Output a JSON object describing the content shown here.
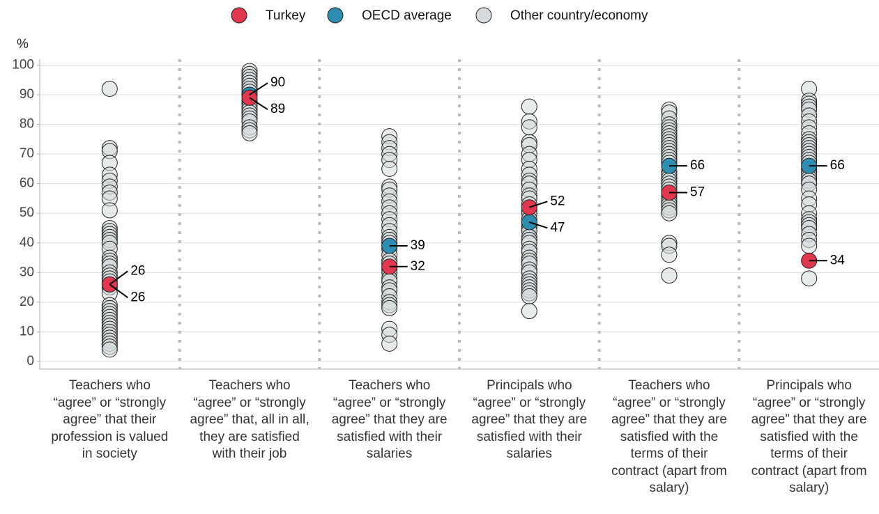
{
  "chart_data": {
    "type": "strip",
    "y_label": "%",
    "categories": [
      "Teachers who “agree” or “strongly agree” that their profession is valued in society",
      "Teachers who “agree” or “strongly agree” that, all in all, they are satisfied with their job",
      "Teachers who “agree” or “strongly agree” that they are satisfied with their salaries",
      "Principals who “agree” or “strongly agree” that they are satisfied with their salaries",
      "Teachers who “agree” or “strongly agree” that they are satisfied with the terms of their contract (apart from salary)",
      "Principals who “agree” or “strongly agree” that they are satisfied with the terms of their contract (apart from salary)"
    ],
    "series": [
      {
        "name": "Turkey",
        "color": "#e0394f",
        "values": [
          26,
          89,
          32,
          52,
          57,
          34
        ],
        "labels": true
      },
      {
        "name": "OECD average",
        "color": "#2e8db0",
        "values": [
          26,
          90,
          39,
          47,
          66,
          66
        ],
        "labels": true
      },
      {
        "name": "Other country/economy",
        "color": "#d6dadd",
        "values": [
          [
            92,
            72,
            71,
            67,
            63,
            61,
            59,
            57,
            55,
            51,
            45,
            44,
            43,
            42,
            41,
            40,
            38,
            35,
            34,
            33,
            32,
            30,
            29,
            28,
            27,
            25,
            23,
            19,
            18,
            17,
            16,
            15,
            14,
            13,
            12,
            11,
            10,
            9,
            8,
            7,
            6,
            5,
            4
          ],
          [
            98,
            97,
            96,
            95,
            94,
            93,
            92,
            91,
            90,
            89,
            88,
            87,
            86,
            85,
            84,
            83,
            82,
            81,
            79,
            78,
            77
          ],
          [
            76,
            74,
            72,
            70,
            68,
            65,
            59,
            58,
            56,
            54,
            52,
            50,
            48,
            46,
            44,
            42,
            41,
            40,
            38,
            36,
            34,
            33,
            31,
            30,
            28,
            27,
            25,
            24,
            22,
            20,
            19,
            18,
            11,
            9,
            6
          ],
          [
            86,
            81,
            79,
            74,
            73,
            70,
            68,
            65,
            63,
            61,
            60,
            58,
            56,
            55,
            53,
            51,
            50,
            48,
            46,
            45,
            44,
            42,
            41,
            40,
            38,
            37,
            35,
            34,
            33,
            31,
            30,
            28,
            27,
            26,
            25,
            24,
            23,
            22,
            17
          ],
          [
            85,
            84,
            82,
            80,
            79,
            78,
            77,
            76,
            75,
            74,
            73,
            72,
            71,
            70,
            69,
            68,
            67,
            64,
            63,
            62,
            61,
            60,
            59,
            58,
            56,
            55,
            54,
            53,
            52,
            51,
            50,
            40,
            39,
            36,
            29
          ],
          [
            92,
            88,
            87,
            86,
            85,
            83,
            81,
            79,
            77,
            75,
            74,
            73,
            72,
            71,
            70,
            69,
            68,
            67,
            65,
            64,
            63,
            62,
            61,
            60,
            58,
            55,
            53,
            50,
            48,
            47,
            46,
            45,
            43,
            41,
            39,
            28
          ]
        ]
      }
    ],
    "ylim": [
      -2.6,
      102
    ],
    "yticks": [
      0,
      10,
      20,
      30,
      40,
      50,
      60,
      70,
      80,
      90,
      100
    ],
    "grid": true
  }
}
